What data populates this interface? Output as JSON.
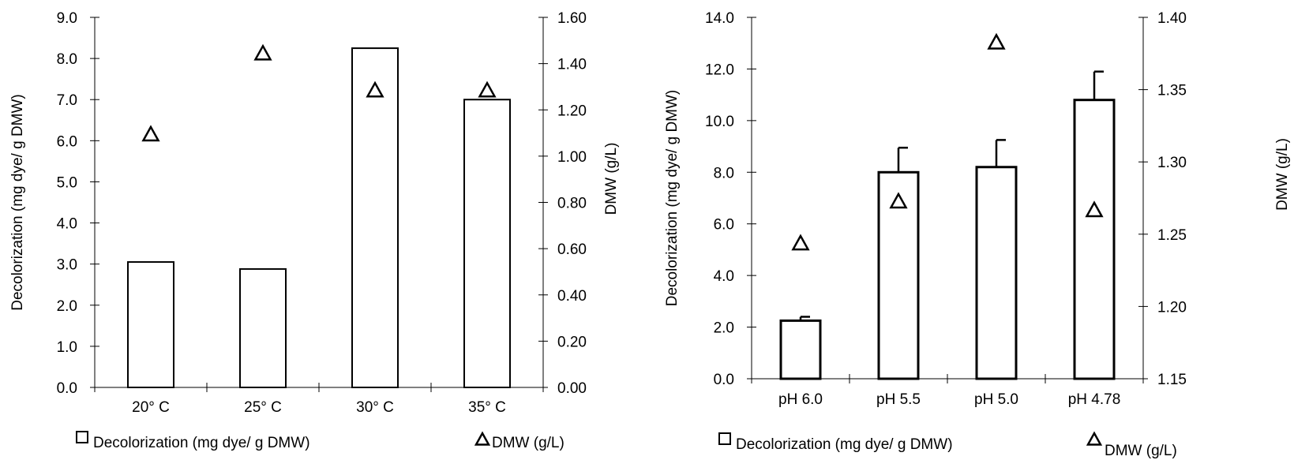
{
  "chart_data": [
    {
      "type": "bar",
      "categories": [
        "20° C",
        "25° C",
        "30° C",
        "35° C"
      ],
      "series": [
        {
          "name": "Decolorization (mg dye/ g DMW)",
          "kind": "bar",
          "axis": "left",
          "values": [
            3.05,
            2.88,
            8.25,
            7.0
          ]
        },
        {
          "name": "DMW (g/L)",
          "kind": "marker",
          "marker": "triangle",
          "axis": "right",
          "values": [
            1.09,
            1.44,
            1.28,
            1.28
          ]
        }
      ],
      "ylabel": "Decolorization (mg dye/ g DMW)",
      "ylabel_right": "DMW (g/L)",
      "ylim": [
        0,
        9
      ],
      "ylim_right": [
        0,
        1.6
      ],
      "yticks": [
        "0.0",
        "1.0",
        "2.0",
        "3.0",
        "4.0",
        "5.0",
        "6.0",
        "7.0",
        "8.0",
        "9.0"
      ],
      "yticks_right": [
        "0.00",
        "0.20",
        "0.40",
        "0.60",
        "0.80",
        "1.00",
        "1.20",
        "1.40",
        "1.60"
      ],
      "grid": false,
      "legend": "bottom"
    },
    {
      "type": "bar",
      "categories": [
        "pH 6.0",
        "pH 5.5",
        "pH 5.0",
        "pH 4.78"
      ],
      "series": [
        {
          "name": "Decolorization (mg dye/ g DMW)",
          "kind": "bar",
          "axis": "left",
          "values": [
            2.25,
            8.0,
            8.2,
            10.8
          ],
          "error": [
            0.15,
            0.95,
            1.05,
            1.1
          ]
        },
        {
          "name": "DMW (g/L)",
          "kind": "marker",
          "marker": "triangle",
          "axis": "right",
          "values": [
            1.243,
            1.272,
            1.382,
            1.266
          ]
        }
      ],
      "ylabel": "Decolorization (mg dye/ g DMW)",
      "ylabel_right": "DMW (g/L)",
      "ylim": [
        0,
        14
      ],
      "ylim_right": [
        1.15,
        1.4
      ],
      "yticks": [
        "0.0",
        "2.0",
        "4.0",
        "6.0",
        "8.0",
        "10.0",
        "12.0",
        "14.0"
      ],
      "yticks_right": [
        "1.15",
        "1.20",
        "1.25",
        "1.30",
        "1.35",
        "1.40"
      ],
      "grid": false,
      "legend": "bottom"
    }
  ]
}
